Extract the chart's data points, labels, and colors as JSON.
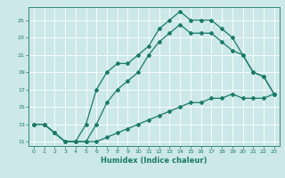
{
  "xlabel": "Humidex (Indice chaleur)",
  "bg_color": "#cce8e8",
  "line_color": "#1a7a6a",
  "grid_color": "#ffffff",
  "xlim": [
    -0.5,
    23.5
  ],
  "ylim": [
    10.5,
    26.5
  ],
  "yticks": [
    11,
    13,
    15,
    17,
    19,
    21,
    23,
    25
  ],
  "xticks": [
    0,
    1,
    2,
    3,
    4,
    5,
    6,
    7,
    8,
    9,
    10,
    11,
    12,
    13,
    14,
    15,
    16,
    17,
    18,
    19,
    20,
    21,
    22,
    23
  ],
  "upper_x": [
    0,
    1,
    2,
    3,
    4,
    5,
    6,
    7,
    8,
    9,
    10,
    11,
    12,
    13,
    14,
    15,
    16,
    17,
    18,
    19,
    20,
    21,
    22,
    23
  ],
  "upper_y": [
    13,
    13,
    12,
    11,
    11,
    13,
    17,
    19,
    20,
    20,
    21,
    22,
    24,
    25,
    26,
    25,
    25,
    25,
    24,
    23,
    21,
    19,
    18.5,
    16.5
  ],
  "mid_x": [
    0,
    1,
    2,
    3,
    4,
    5,
    6,
    7,
    8,
    9,
    10,
    11,
    12,
    13,
    14,
    15,
    16,
    17,
    18,
    19,
    20,
    21,
    22,
    23
  ],
  "mid_y": [
    13,
    13,
    12,
    11,
    11,
    11,
    13,
    15.5,
    17,
    18,
    19,
    21,
    22.5,
    23.5,
    24.5,
    23.5,
    23.5,
    23.5,
    22.5,
    21.5,
    21,
    19,
    18.5,
    16.5
  ],
  "lower_x": [
    0,
    1,
    2,
    3,
    4,
    5,
    6,
    7,
    8,
    9,
    10,
    11,
    12,
    13,
    14,
    15,
    16,
    17,
    18,
    19,
    20,
    21,
    22,
    23
  ],
  "lower_y": [
    13,
    13,
    12,
    11,
    11,
    11,
    11,
    11.5,
    12,
    12.5,
    13,
    13.5,
    14,
    14.5,
    15,
    15.5,
    15.5,
    16,
    16,
    16.5,
    16,
    16,
    16,
    16.5
  ],
  "xlabel_fontsize": 6,
  "tick_fontsize": 4.5,
  "linewidth": 0.9,
  "markersize": 2.0
}
